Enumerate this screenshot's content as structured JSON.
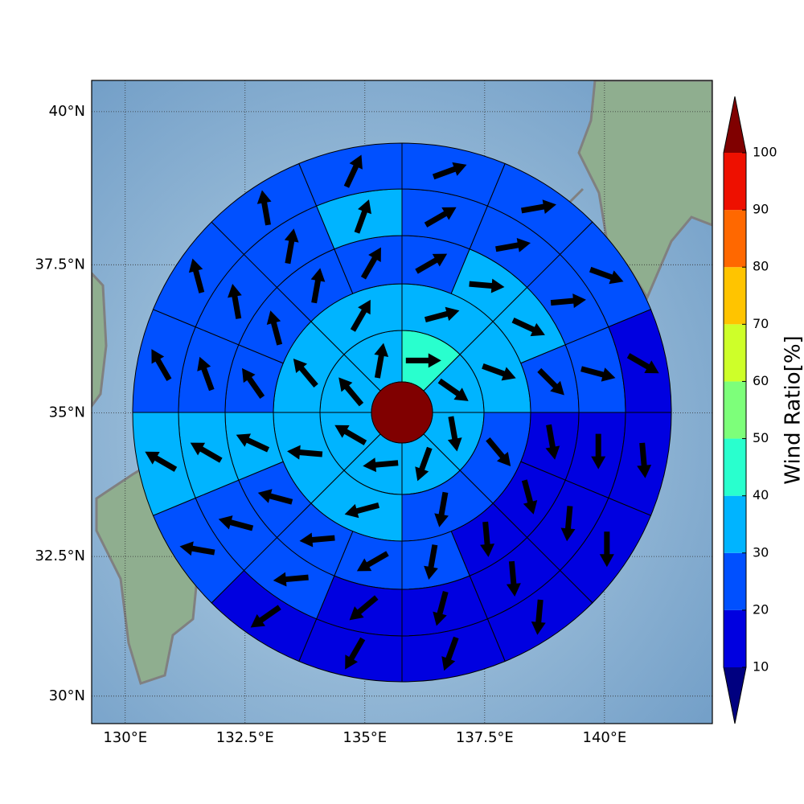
{
  "chart_data": {
    "type": "polar-sectors",
    "xlim": [
      129.3,
      142.25
    ],
    "ylim": [
      29.5,
      40.5
    ],
    "xticks": [
      {
        "value": 130,
        "label": "130°E"
      },
      {
        "value": 132.5,
        "label": "132.5°E"
      },
      {
        "value": 135,
        "label": "135°E"
      },
      {
        "value": 137.5,
        "label": "137.5°E"
      },
      {
        "value": 140,
        "label": "140°E"
      }
    ],
    "yticks": [
      {
        "value": 30,
        "label": "30°N"
      },
      {
        "value": 32.5,
        "label": "32.5°N"
      },
      {
        "value": 35,
        "label": "35°N"
      },
      {
        "value": 37.5,
        "label": "37.5°N"
      },
      {
        "value": 40,
        "label": "40°N"
      }
    ],
    "grid": true,
    "center": {
      "value": 105
    },
    "rings": [
      {
        "values": [
          45,
          35,
          35,
          35,
          35,
          35,
          35,
          35
        ],
        "directions": [
          90,
          125,
          170,
          200,
          265,
          300,
          320,
          10
        ]
      },
      {
        "values": [
          35,
          35,
          25,
          25,
          35,
          35,
          35,
          35
        ],
        "directions": [
          75,
          110,
          140,
          190,
          255,
          275,
          320,
          30
        ]
      },
      {
        "values": [
          25,
          35,
          35,
          25,
          15,
          15,
          15,
          25,
          25,
          25,
          25,
          35,
          25,
          25,
          25,
          25
        ],
        "directions": [
          60,
          95,
          115,
          135,
          170,
          165,
          175,
          190,
          240,
          265,
          285,
          295,
          325,
          345,
          10,
          30
        ]
      },
      {
        "values": [
          25,
          25,
          25,
          25,
          15,
          15,
          15,
          15,
          15,
          25,
          25,
          35,
          25,
          25,
          25,
          35
        ],
        "directions": [
          60,
          80,
          85,
          105,
          180,
          185,
          175,
          195,
          230,
          265,
          285,
          300,
          340,
          350,
          10,
          20
        ]
      },
      {
        "values": [
          25,
          25,
          25,
          15,
          15,
          15,
          15,
          15,
          15,
          15,
          25,
          35,
          25,
          25,
          25,
          25
        ],
        "directions": [
          70,
          80,
          110,
          120,
          175,
          180,
          185,
          200,
          210,
          235,
          280,
          300,
          330,
          345,
          350,
          25
        ]
      }
    ],
    "colorbar": {
      "label": "Wind Ratio[%]",
      "levels": [
        10,
        20,
        30,
        40,
        50,
        60,
        70,
        80,
        90,
        100
      ],
      "colors": [
        "#0000e0",
        "#0050ff",
        "#00b4ff",
        "#29ffce",
        "#7dff7a",
        "#ceff29",
        "#ffc400",
        "#ff6800",
        "#ee1000"
      ],
      "under_color": "#000080",
      "over_color": "#800000"
    }
  }
}
